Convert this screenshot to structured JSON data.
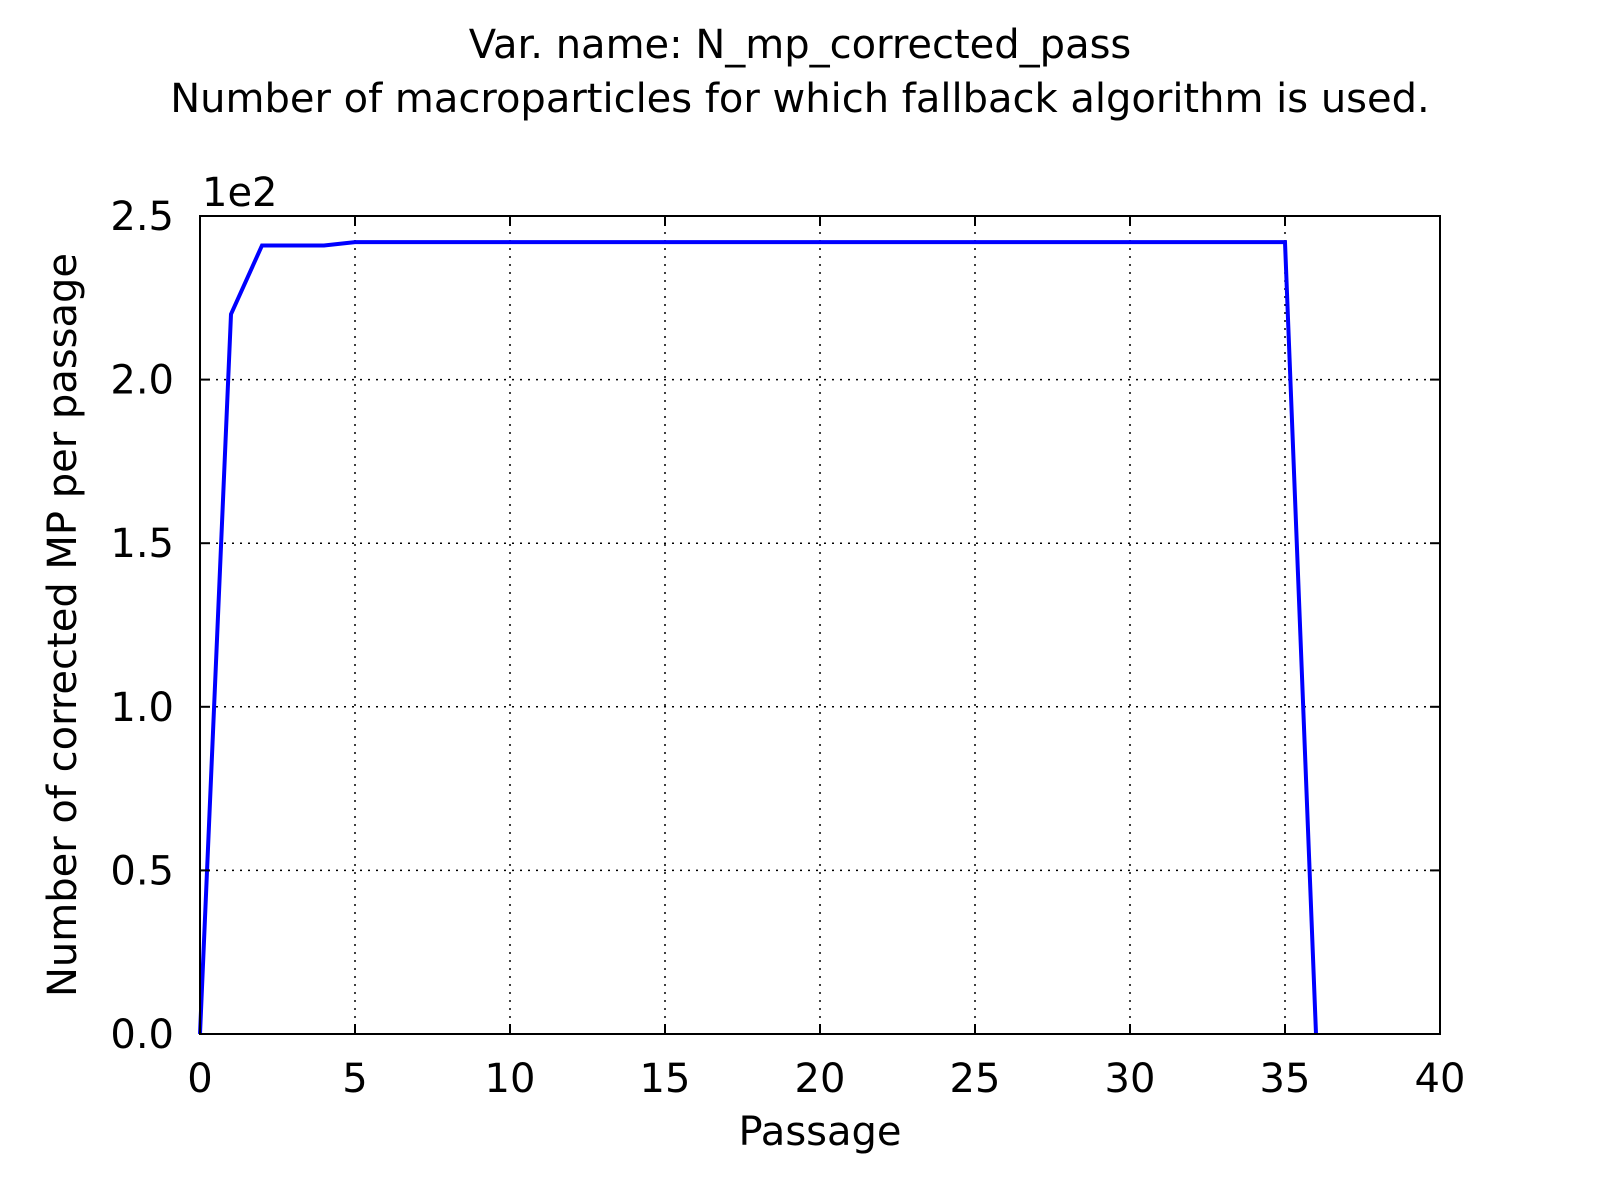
{
  "chart_data": {
    "type": "line",
    "title": "Var. name: N_mp_corrected_pass",
    "subtitle": "Number of macroparticles for which fallback algorithm is used.",
    "xlabel": "Passage",
    "ylabel": "Number of corrected MP per passage",
    "y_offset_label": "1e2",
    "xlim": [
      0,
      40
    ],
    "ylim": [
      0,
      2.5
    ],
    "x_ticks": [
      0,
      5,
      10,
      15,
      20,
      25,
      30,
      35,
      40
    ],
    "x_tick_labels": [
      "0",
      "5",
      "10",
      "15",
      "20",
      "25",
      "30",
      "35",
      "40"
    ],
    "y_ticks": [
      0,
      0.5,
      1.0,
      1.5,
      2.0,
      2.5
    ],
    "y_tick_labels": [
      "0.0",
      "0.5",
      "1.0",
      "1.5",
      "2.0",
      "2.5"
    ],
    "grid": true,
    "series": [
      {
        "color": "#0000ff",
        "x": [
          0,
          1,
          2,
          3,
          4,
          5,
          6,
          7,
          8,
          9,
          10,
          11,
          12,
          13,
          14,
          15,
          16,
          17,
          18,
          19,
          20,
          21,
          22,
          23,
          24,
          25,
          26,
          27,
          28,
          29,
          30,
          31,
          32,
          33,
          34,
          35,
          36
        ],
        "values": [
          0,
          2.2,
          2.41,
          2.41,
          2.41,
          2.42,
          2.42,
          2.42,
          2.42,
          2.42,
          2.42,
          2.42,
          2.42,
          2.42,
          2.42,
          2.42,
          2.42,
          2.42,
          2.42,
          2.42,
          2.42,
          2.42,
          2.42,
          2.42,
          2.42,
          2.42,
          2.42,
          2.42,
          2.42,
          2.42,
          2.42,
          2.42,
          2.42,
          2.42,
          2.42,
          2.42,
          0
        ]
      }
    ]
  }
}
